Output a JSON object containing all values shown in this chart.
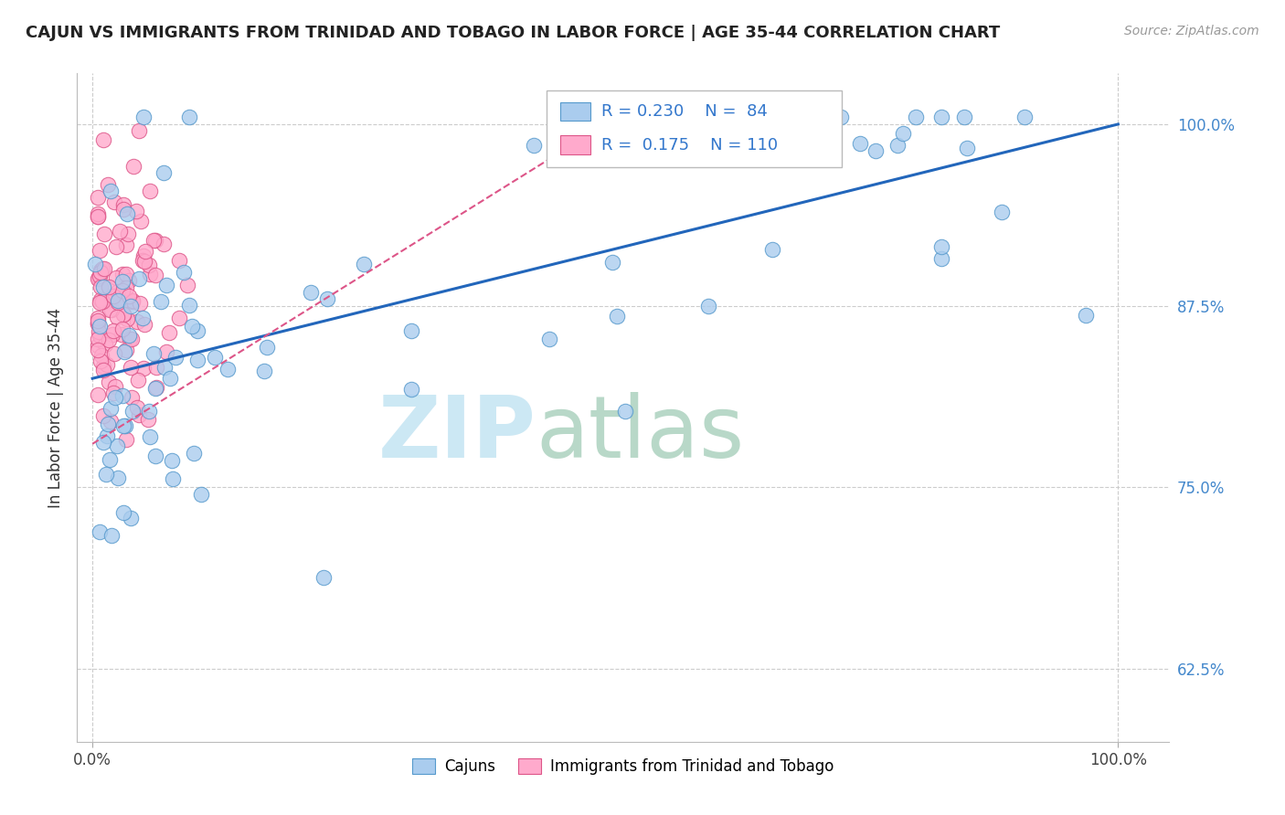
{
  "title": "CAJUN VS IMMIGRANTS FROM TRINIDAD AND TOBAGO IN LABOR FORCE | AGE 35-44 CORRELATION CHART",
  "source": "Source: ZipAtlas.com",
  "ylabel": "In Labor Force | Age 35-44",
  "cajun_color": "#aaccee",
  "cajun_edge": "#5599cc",
  "trini_color": "#ffaacc",
  "trini_edge": "#dd5588",
  "trendline_cajun": "#2266bb",
  "trendline_trini": "#dd4477",
  "background": "#ffffff",
  "grid_color": "#cccccc",
  "title_color": "#222222",
  "source_color": "#999999",
  "ytick_color": "#4488cc",
  "xtick_color": "#444444",
  "cajun_line_x0": 0.0,
  "cajun_line_y0": 0.825,
  "cajun_line_x1": 1.0,
  "cajun_line_y1": 1.0,
  "trini_line_x0": 0.0,
  "trini_line_y0": 0.78,
  "trini_line_x1": 0.5,
  "trini_line_y1": 1.0,
  "xlim": [
    -0.015,
    1.05
  ],
  "ylim": [
    0.575,
    1.035
  ],
  "yticks": [
    0.625,
    0.75,
    0.875,
    1.0
  ],
  "ytick_labels": [
    "62.5%",
    "75.0%",
    "87.5%",
    "100.0%"
  ],
  "xticks": [
    0.0,
    1.0
  ],
  "xtick_labels": [
    "0.0%",
    "100.0%"
  ]
}
